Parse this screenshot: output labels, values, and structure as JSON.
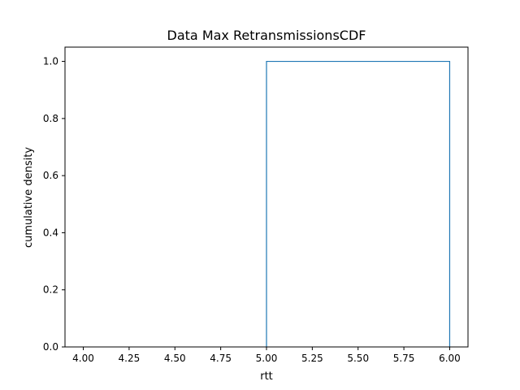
{
  "chart_data": {
    "type": "line",
    "title": "Data Max RetransmissionsCDF",
    "xlabel": "rtt",
    "ylabel": "cumulative density",
    "xlim": [
      3.9,
      6.1
    ],
    "ylim": [
      0.0,
      1.05
    ],
    "x_ticks": [
      "4.00",
      "4.25",
      "4.50",
      "4.75",
      "5.00",
      "5.25",
      "5.50",
      "5.75",
      "6.00"
    ],
    "y_ticks": [
      "0.0",
      "0.2",
      "0.4",
      "0.6",
      "0.8",
      "1.0"
    ],
    "grid": false,
    "series": [
      {
        "histtype": "step",
        "color": "#1f77b4",
        "x": [
          5.0,
          5.0,
          6.0,
          6.0
        ],
        "y": [
          0.0,
          1.0,
          1.0,
          0.0
        ]
      }
    ]
  }
}
